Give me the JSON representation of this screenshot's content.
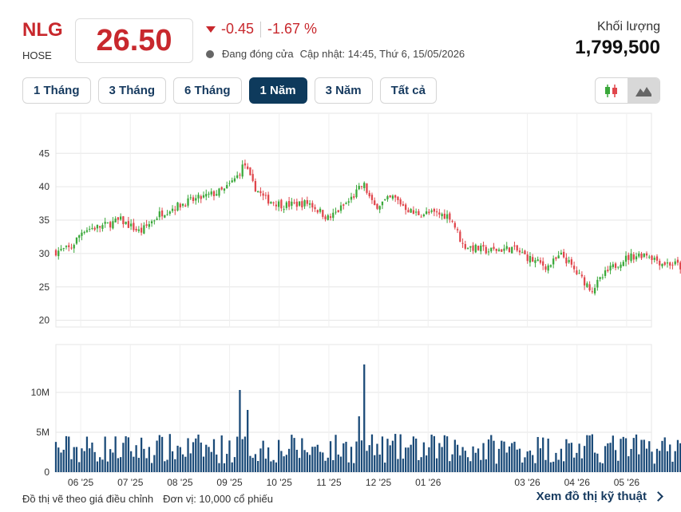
{
  "header": {
    "ticker": "NLG",
    "exchange": "HOSE",
    "price": "26.50",
    "change": "-0.45",
    "change_pct": "-1.67 %",
    "status": "Đang đóng cửa",
    "updated": "Cập nhật: 14:45, Thứ 6, 15/05/2026",
    "volume_label": "Khối lượng",
    "volume_value": "1,799,500",
    "down_color": "#e0464c",
    "up_color": "#3aa83a"
  },
  "tabs": [
    {
      "label": "1 Tháng",
      "active": false
    },
    {
      "label": "3 Tháng",
      "active": false
    },
    {
      "label": "6 Tháng",
      "active": false
    },
    {
      "label": "1 Năm",
      "active": true
    },
    {
      "label": "3 Năm",
      "active": false
    },
    {
      "label": "Tất cả",
      "active": false
    }
  ],
  "chart_toggle": {
    "candles_icon": "candlestick-icon",
    "area_icon": "mountain-area-icon",
    "active": "area"
  },
  "chart_data": {
    "type": "candlestick",
    "x_tick_labels": [
      "06 '25",
      "07 '25",
      "08 '25",
      "09 '25",
      "10 '25",
      "11 '25",
      "12 '25",
      "01 '26",
      "03 '26",
      "04 '26",
      "05 '26"
    ],
    "x_tick_months": [
      1,
      2,
      3,
      4,
      5,
      6,
      7,
      8,
      10,
      11,
      12
    ],
    "x_range_months": [
      0.5,
      12.5
    ],
    "price_axis": {
      "ticks": [
        20,
        25,
        30,
        35,
        40,
        45
      ],
      "range": [
        19,
        51
      ]
    },
    "volume_axis": {
      "ticks": [
        0,
        5,
        10
      ],
      "tick_labels": [
        "0",
        "5M",
        "10M"
      ],
      "range": [
        0,
        16
      ],
      "unit": "M shares"
    },
    "grid": true,
    "price_anchors": [
      [
        0.5,
        30.3
      ],
      [
        0.8,
        30.8
      ],
      [
        1.05,
        33.6
      ],
      [
        1.4,
        34.0
      ],
      [
        1.8,
        35.0
      ],
      [
        2.2,
        33.2
      ],
      [
        2.6,
        36.0
      ],
      [
        3.1,
        37.6
      ],
      [
        3.5,
        38.5
      ],
      [
        3.9,
        39.5
      ],
      [
        4.15,
        41.5
      ],
      [
        4.3,
        43.5
      ],
      [
        4.45,
        40.5
      ],
      [
        4.7,
        38.2
      ],
      [
        5.1,
        37.2
      ],
      [
        5.6,
        37.6
      ],
      [
        6.0,
        35.2
      ],
      [
        6.4,
        37.8
      ],
      [
        6.7,
        40.4
      ],
      [
        6.9,
        37.0
      ],
      [
        7.3,
        38.4
      ],
      [
        7.7,
        36.0
      ],
      [
        8.1,
        36.0
      ],
      [
        8.45,
        35.6
      ],
      [
        8.7,
        31.2
      ],
      [
        9.2,
        30.4
      ],
      [
        9.7,
        30.8
      ],
      [
        10.1,
        29.0
      ],
      [
        10.4,
        28.0
      ],
      [
        10.7,
        29.8
      ],
      [
        11.0,
        27.0
      ],
      [
        11.3,
        24.6
      ],
      [
        11.6,
        27.2
      ],
      [
        11.9,
        29.0
      ],
      [
        12.1,
        29.6
      ],
      [
        12.4,
        30.0
      ],
      [
        12.7,
        28.6
      ],
      [
        13.0,
        28.4
      ],
      [
        13.3,
        26.9
      ],
      [
        13.5,
        26.6
      ]
    ],
    "volume_spikes": [
      [
        4.22,
        10.3
      ],
      [
        4.35,
        7.8
      ],
      [
        6.72,
        13.5
      ],
      [
        6.62,
        7.0
      ]
    ],
    "volume_base_m": 3.0
  },
  "footer": {
    "note": "Đồ thị vẽ theo giá điều chỉnh",
    "unit": "Đơn vị: 10,000 cổ phiếu",
    "link": "Xem đồ thị kỹ thuật"
  }
}
